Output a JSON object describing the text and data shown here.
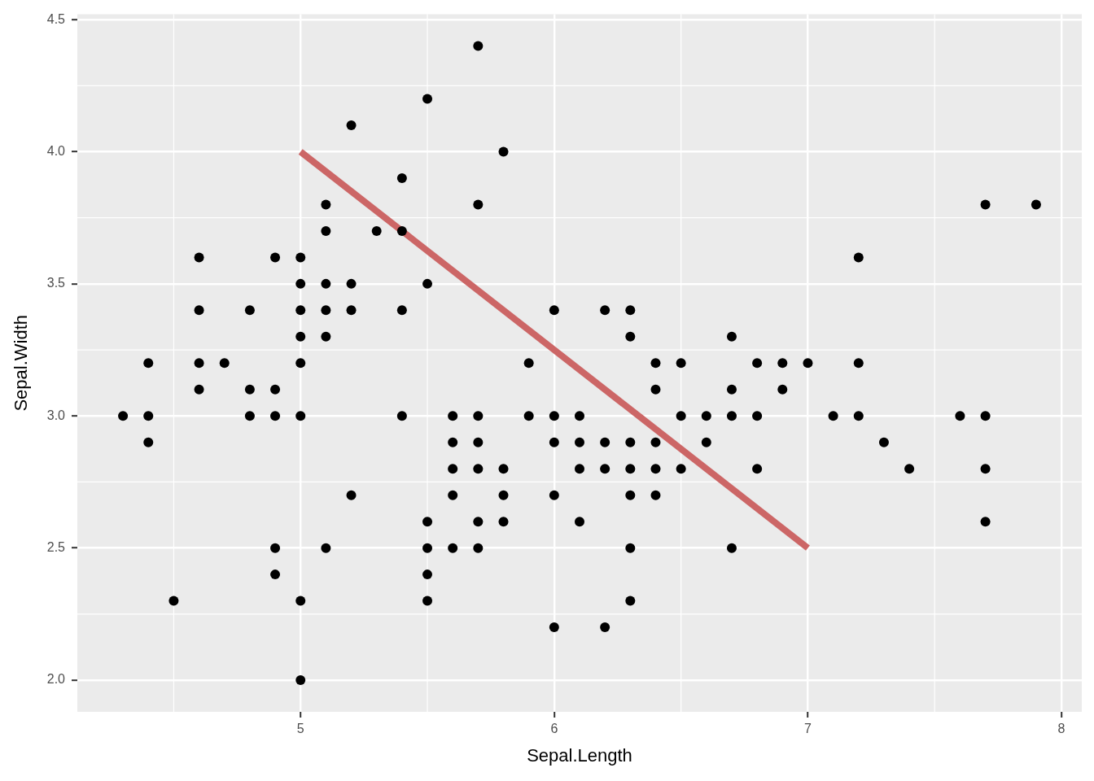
{
  "chart_data": {
    "type": "scatter",
    "xlabel": "Sepal.Length",
    "ylabel": "Sepal.Width",
    "xlim": [
      4.12,
      8.08
    ],
    "ylim": [
      1.88,
      4.52
    ],
    "xticks": [
      5,
      6,
      7,
      8
    ],
    "yticks": [
      {
        "value": 2,
        "label": "2.0"
      },
      2.5,
      {
        "value": 3,
        "label": "3.0"
      },
      3.5,
      {
        "value": 4,
        "label": "4.0"
      },
      4.5
    ],
    "grid": true,
    "legend": false,
    "marker": "circle",
    "series": [
      {
        "color": "#000000",
        "x": [
          5.1,
          4.9,
          4.7,
          4.6,
          5.0,
          5.4,
          4.6,
          5.0,
          4.4,
          4.9,
          5.4,
          4.8,
          4.8,
          4.3,
          5.8,
          5.7,
          5.7,
          5.1,
          5.4,
          5.1,
          4.6,
          5.1,
          5.0,
          5.2,
          5.2,
          4.8,
          5.2,
          5.5,
          5.0,
          5.5,
          4.9,
          4.4,
          5.1,
          5.0,
          4.5,
          4.4,
          4.6,
          5.3,
          5.0,
          7.0,
          6.4,
          6.9,
          5.5,
          6.5,
          5.7,
          6.3,
          4.9,
          6.6,
          5.2,
          5.0,
          5.9,
          6.0,
          6.1,
          5.6,
          6.7,
          5.6,
          5.8,
          6.2,
          5.6,
          5.9,
          6.1,
          6.3,
          6.4,
          6.6,
          6.8,
          6.7,
          6.0,
          5.7,
          5.5,
          6.0,
          5.4,
          6.0,
          6.3,
          5.5,
          5.5,
          6.1,
          5.8,
          5.0,
          5.6,
          5.7,
          5.7,
          6.2,
          5.1,
          7.1,
          6.3,
          6.5,
          7.6,
          4.9,
          7.3,
          6.7,
          7.2,
          6.5,
          6.4,
          6.8,
          5.7,
          5.8,
          7.7,
          7.7,
          6.9,
          5.6,
          7.7,
          6.3,
          6.7,
          7.2,
          6.2,
          7.7,
          6.3,
          7.2,
          7.4,
          7.9,
          6.4,
          6.1,
          6.3,
          6.4,
          6.0,
          6.8,
          6.2
        ],
        "values": [
          3.5,
          3.0,
          3.2,
          3.1,
          3.6,
          3.9,
          3.4,
          3.4,
          2.9,
          3.1,
          3.7,
          3.4,
          3.0,
          3.0,
          4.0,
          4.4,
          3.8,
          3.8,
          3.4,
          3.7,
          3.6,
          3.3,
          3.0,
          3.5,
          3.4,
          3.1,
          4.1,
          4.2,
          3.2,
          3.5,
          3.6,
          3.0,
          3.4,
          3.5,
          2.3,
          3.2,
          3.2,
          3.7,
          3.3,
          3.2,
          3.2,
          3.1,
          2.3,
          2.8,
          2.8,
          3.3,
          2.4,
          2.9,
          2.7,
          2.0,
          3.0,
          2.2,
          2.9,
          2.9,
          3.1,
          3.0,
          2.7,
          2.2,
          2.5,
          3.2,
          2.8,
          2.5,
          2.9,
          3.0,
          2.8,
          3.0,
          2.9,
          2.6,
          2.4,
          2.7,
          3.0,
          3.4,
          2.3,
          2.5,
          2.6,
          3.0,
          2.6,
          2.3,
          2.7,
          3.0,
          2.9,
          2.9,
          2.5,
          3.0,
          2.9,
          3.0,
          3.0,
          2.5,
          2.9,
          2.5,
          3.6,
          3.2,
          2.7,
          3.0,
          2.5,
          2.8,
          3.8,
          2.6,
          3.2,
          2.8,
          2.8,
          2.7,
          3.3,
          3.2,
          2.8,
          3.0,
          2.8,
          3.0,
          2.8,
          3.8,
          2.8,
          2.6,
          3.4,
          3.1,
          3.0,
          3.2,
          3.4
        ]
      },
      {
        "type": "line",
        "color": "#cc6666",
        "marker": "none",
        "line_style": "solid",
        "x": [
          5,
          7
        ],
        "values": [
          4.0,
          2.5
        ]
      }
    ]
  }
}
